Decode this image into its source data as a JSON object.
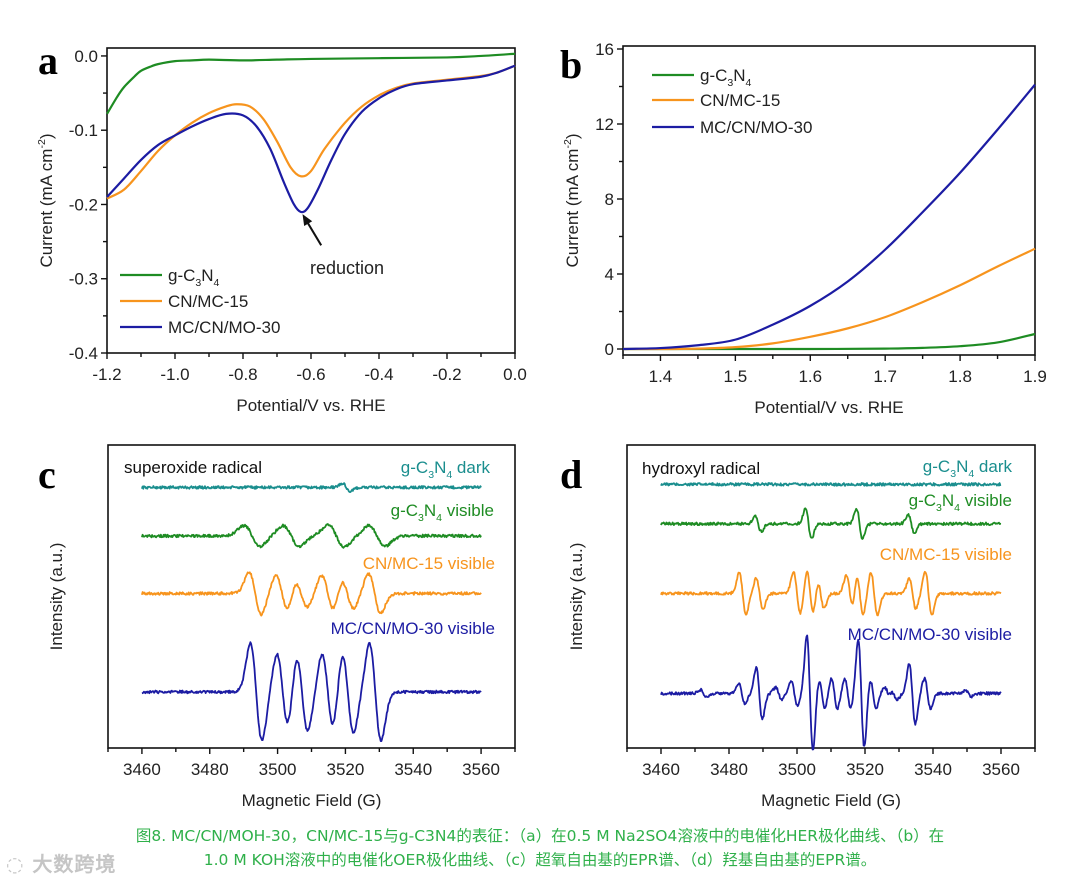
{
  "chart_data": [
    {
      "panel": "a",
      "type": "line",
      "xlabel": "Potential/V vs. RHE",
      "ylabel": "Current (mA cm-2)",
      "xlim": [
        -1.2,
        0.0
      ],
      "ylim": [
        -0.4,
        0.0107
      ],
      "xticks": [
        -1.2,
        -1.0,
        -0.8,
        -0.6,
        -0.4,
        -0.2,
        0.0
      ],
      "xtick_labels": [
        "-1.2",
        "-1.0",
        "-0.8",
        "-0.6",
        "-0.4",
        "-0.2",
        "0.0"
      ],
      "yticks": [
        0.0,
        -0.1,
        -0.2,
        -0.3,
        -0.4
      ],
      "ytick_labels": [
        "0.0",
        "-0.1",
        "-0.2",
        "-0.3",
        "-0.4"
      ],
      "legend_position": "bottom-left",
      "annotation": {
        "text": "reduction",
        "arrow_from": [
          -0.57,
          -0.255
        ],
        "arrow_to": [
          -0.625,
          -0.213
        ]
      },
      "series": [
        {
          "name": "g-C3N4",
          "color": "#1e8c23",
          "x": [
            -1.2,
            -1.17,
            -1.15,
            -1.12,
            -1.1,
            -1.07,
            -1.05,
            -1.0,
            -0.95,
            -0.9,
            -0.8,
            -0.7,
            -0.6,
            -0.4,
            -0.2,
            -0.1,
            0.0
          ],
          "y": [
            -0.078,
            -0.055,
            -0.042,
            -0.028,
            -0.02,
            -0.014,
            -0.011,
            -0.007,
            -0.006,
            -0.005,
            -0.006,
            -0.005,
            -0.004,
            -0.003,
            -0.002,
            0.0,
            0.003
          ]
        },
        {
          "name": "CN/MC-15",
          "color": "#f7941d",
          "x": [
            -1.2,
            -1.15,
            -1.1,
            -1.05,
            -1.0,
            -0.95,
            -0.9,
            -0.85,
            -0.82,
            -0.78,
            -0.74,
            -0.7,
            -0.66,
            -0.63,
            -0.6,
            -0.56,
            -0.5,
            -0.45,
            -0.4,
            -0.35,
            -0.3,
            -0.2,
            -0.1,
            -0.05,
            0.0
          ],
          "y": [
            -0.192,
            -0.18,
            -0.155,
            -0.128,
            -0.107,
            -0.09,
            -0.077,
            -0.068,
            -0.065,
            -0.068,
            -0.085,
            -0.115,
            -0.15,
            -0.162,
            -0.155,
            -0.125,
            -0.09,
            -0.068,
            -0.053,
            -0.043,
            -0.037,
            -0.032,
            -0.027,
            -0.022,
            -0.013
          ]
        },
        {
          "name": "MC/CN/MO-30",
          "color": "#1c1ca3",
          "x": [
            -1.2,
            -1.15,
            -1.1,
            -1.05,
            -1.0,
            -0.95,
            -0.9,
            -0.85,
            -0.8,
            -0.76,
            -0.72,
            -0.68,
            -0.65,
            -0.63,
            -0.61,
            -0.58,
            -0.54,
            -0.5,
            -0.45,
            -0.4,
            -0.35,
            -0.3,
            -0.2,
            -0.1,
            -0.05,
            0.0
          ],
          "y": [
            -0.19,
            -0.165,
            -0.14,
            -0.12,
            -0.107,
            -0.095,
            -0.085,
            -0.078,
            -0.08,
            -0.095,
            -0.125,
            -0.17,
            -0.2,
            -0.21,
            -0.205,
            -0.18,
            -0.14,
            -0.105,
            -0.075,
            -0.057,
            -0.045,
            -0.038,
            -0.033,
            -0.028,
            -0.022,
            -0.013
          ]
        }
      ]
    },
    {
      "panel": "b",
      "type": "line",
      "xlabel": "Potential/V vs. RHE",
      "ylabel": "Current (mA cm-2)",
      "xlim": [
        1.35,
        1.9
      ],
      "ylim": [
        -0.32,
        16.16
      ],
      "xticks": [
        1.4,
        1.5,
        1.6,
        1.7,
        1.8,
        1.9
      ],
      "xtick_labels": [
        "1.4",
        "1.5",
        "1.6",
        "1.7",
        "1.8",
        "1.9"
      ],
      "yticks": [
        0,
        4,
        8,
        12,
        16
      ],
      "ytick_labels": [
        "0",
        "4",
        "8",
        "12",
        "16"
      ],
      "legend_position": "top-left",
      "series": [
        {
          "name": "g-C3N4",
          "color": "#1e8c23",
          "x": [
            1.35,
            1.4,
            1.5,
            1.6,
            1.7,
            1.75,
            1.8,
            1.85,
            1.9
          ],
          "y": [
            0,
            0,
            0,
            0,
            0.02,
            0.06,
            0.15,
            0.35,
            0.8
          ]
        },
        {
          "name": "CN/MC-15",
          "color": "#f7941d",
          "x": [
            1.35,
            1.4,
            1.45,
            1.5,
            1.55,
            1.6,
            1.65,
            1.7,
            1.75,
            1.8,
            1.85,
            1.9
          ],
          "y": [
            0,
            0,
            0.02,
            0.1,
            0.3,
            0.65,
            1.1,
            1.7,
            2.5,
            3.4,
            4.4,
            5.35
          ]
        },
        {
          "name": "MC/CN/MO-30",
          "color": "#1c1ca3",
          "x": [
            1.35,
            1.4,
            1.45,
            1.5,
            1.55,
            1.6,
            1.65,
            1.7,
            1.75,
            1.8,
            1.85,
            1.9
          ],
          "y": [
            0,
            0.05,
            0.2,
            0.5,
            1.3,
            2.3,
            3.6,
            5.3,
            7.3,
            9.4,
            11.7,
            14.1
          ]
        }
      ]
    },
    {
      "panel": "c",
      "type": "line",
      "title": "superoxide radical",
      "xlabel": "Magnetic Field (G)",
      "ylabel": "Intensity (a.u.)",
      "xlim": [
        3450,
        3570
      ],
      "ylim": [
        0,
        100
      ],
      "xticks": [
        3460,
        3480,
        3500,
        3520,
        3540,
        3560
      ],
      "xtick_labels": [
        "3460",
        "3480",
        "3500",
        "3520",
        "3540",
        "3560"
      ],
      "x_range": [
        3460,
        3560
      ],
      "series": [
        {
          "name": "g-C3N4 dark",
          "color": "#1a8e8e",
          "baseline": 86,
          "width": 1.2,
          "lines": [
            {
              "center": 3520.3,
              "amp": 1.3
            }
          ]
        },
        {
          "name": "g-C3N4 visible",
          "color": "#1e8c23",
          "baseline": 70,
          "width": 2.4,
          "lines": [
            {
              "center": 3492.5,
              "amp": 3.4
            },
            {
              "center": 3504,
              "amp": 3.4
            },
            {
              "center": 3517.3,
              "amp": 3.6
            },
            {
              "center": 3529.3,
              "amp": 3.4
            }
          ]
        },
        {
          "name": "CN/MC-15 visible",
          "color": "#f7941d",
          "baseline": 51,
          "width": 1.8,
          "lines": [
            {
              "center": 3493.4,
              "amp": 7
            },
            {
              "center": 3501.3,
              "amp": 6
            },
            {
              "center": 3507,
              "amp": 4.5
            },
            {
              "center": 3514.8,
              "amp": 6
            },
            {
              "center": 3520.6,
              "amp": 5
            },
            {
              "center": 3528.6,
              "amp": 6.5
            }
          ]
        },
        {
          "name": "MC/CN/MO-30 visible",
          "color": "#1c1ca3",
          "baseline": 18.5,
          "width": 1.7,
          "lines": [
            {
              "center": 3493.7,
              "amp": 16
            },
            {
              "center": 3501.5,
              "amp": 12.5
            },
            {
              "center": 3507.2,
              "amp": 13
            },
            {
              "center": 3514.8,
              "amp": 12.5
            },
            {
              "center": 3520.7,
              "amp": 13.5
            },
            {
              "center": 3528.8,
              "amp": 16
            }
          ]
        }
      ]
    },
    {
      "panel": "d",
      "type": "line",
      "title": "hydroxyl radical",
      "xlabel": "Magnetic Field (G)",
      "ylabel": "Intensity (a.u.)",
      "xlim": [
        3450,
        3570
      ],
      "ylim": [
        0,
        100
      ],
      "xticks": [
        3460,
        3480,
        3500,
        3520,
        3540,
        3560
      ],
      "xtick_labels": [
        "3460",
        "3480",
        "3500",
        "3520",
        "3540",
        "3560"
      ],
      "x_range": [
        3460,
        3560
      ],
      "series": [
        {
          "name": "g-C3N4 dark",
          "color": "#1a8e8e",
          "baseline": 87,
          "width": 1.0,
          "lines": []
        },
        {
          "name": "g-C3N4 visible",
          "color": "#1e8c23",
          "baseline": 74,
          "width": 0.9,
          "lines": [
            {
              "center": 3488.6,
              "amp": 2.6
            },
            {
              "center": 3503.4,
              "amp": 5
            },
            {
              "center": 3518.4,
              "amp": 5
            },
            {
              "center": 3533.6,
              "amp": 3
            }
          ]
        },
        {
          "name": "CN/MC-15 visible",
          "color": "#f7941d",
          "baseline": 51,
          "width": 1.0,
          "lines": [
            {
              "center": 3484,
              "amp": 7
            },
            {
              "center": 3489,
              "amp": 5
            },
            {
              "center": 3500,
              "amp": 7
            },
            {
              "center": 3503.9,
              "amp": 7.5
            },
            {
              "center": 3507,
              "amp": 5
            },
            {
              "center": 3515.5,
              "amp": 6
            },
            {
              "center": 3518.5,
              "amp": 7
            },
            {
              "center": 3522.7,
              "amp": 7
            },
            {
              "center": 3534,
              "amp": 5
            },
            {
              "center": 3538.7,
              "amp": 7
            }
          ]
        },
        {
          "name": "MC/CN/MO-30 visible",
          "color": "#1c1ca3",
          "baseline": 18,
          "width": 0.9,
          "lines": [
            {
              "center": 3472.5,
              "amp": 1.2
            },
            {
              "center": 3483.8,
              "amp": 3.5
            },
            {
              "center": 3488.9,
              "amp": 8.5
            },
            {
              "center": 3494.6,
              "amp": 2
            },
            {
              "center": 3499.2,
              "amp": 4
            },
            {
              "center": 3503.8,
              "amp": 19
            },
            {
              "center": 3507.3,
              "amp": 5
            },
            {
              "center": 3511,
              "amp": 5
            },
            {
              "center": 3514.9,
              "amp": 5
            },
            {
              "center": 3518.9,
              "amp": 18
            },
            {
              "center": 3522.4,
              "amp": 5
            },
            {
              "center": 3526.6,
              "amp": 2
            },
            {
              "center": 3528.6,
              "amp": 2
            },
            {
              "center": 3533.9,
              "amp": 10
            },
            {
              "center": 3538.4,
              "amp": 5
            },
            {
              "center": 3550.5,
              "amp": 1
            }
          ]
        }
      ]
    }
  ],
  "caption": {
    "line1": "图8. MC/CN/MOH-30，CN/MC-15与g-C3N4的表征：（a）在0.5 M Na2SO4溶液中的电催化HER极化曲线、（b）在",
    "line2": "1.0 M KOH溶液中的电催化OER极化曲线、（c）超氧自由基的EPR谱、（d）羟基自由基的EPR谱。"
  },
  "watermark": "大数跨境",
  "colors": {
    "green": "#1e8c23",
    "orange": "#f7941d",
    "blue": "#1c1ca3",
    "teal": "#1a8e8e",
    "caption": "#2fb04a"
  }
}
